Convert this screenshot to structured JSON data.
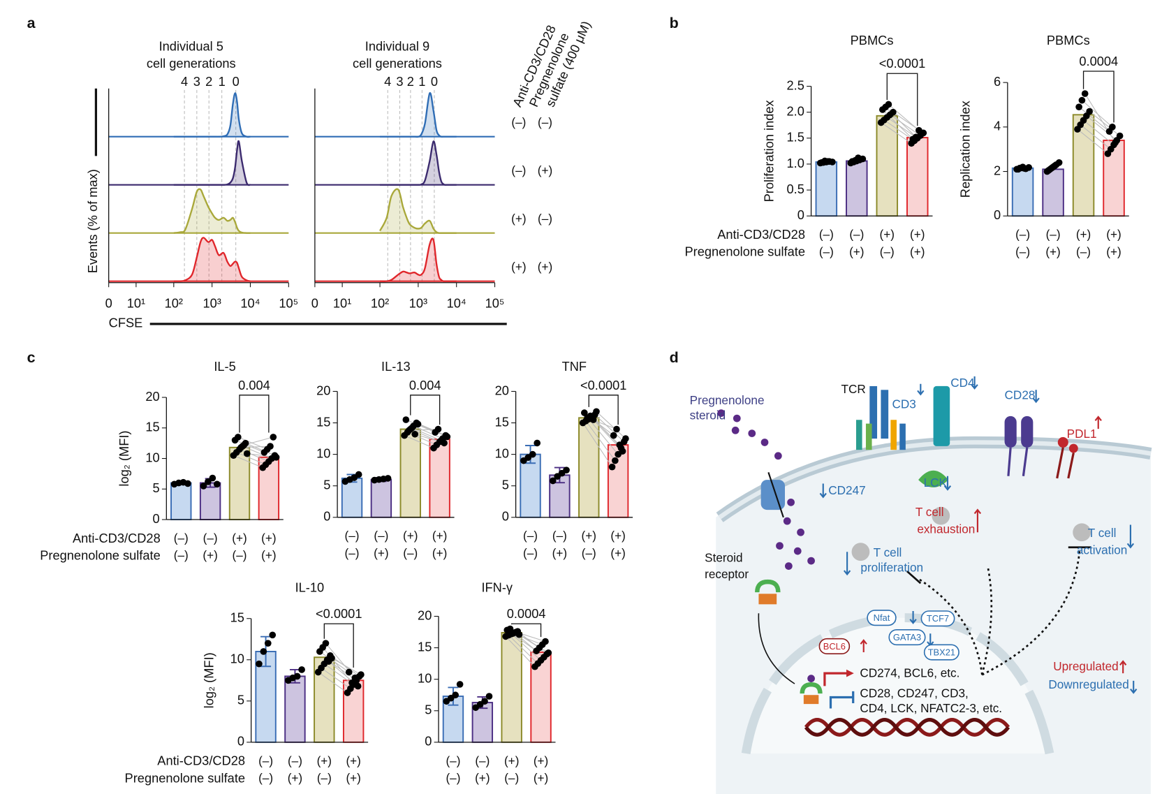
{
  "panel_labels": [
    "a",
    "b",
    "c",
    "d"
  ],
  "chart_data": [
    {
      "type": "line",
      "title": "Individual 5",
      "subtitle": "cell generations",
      "ylabel": "Events (% of max)",
      "xlabel": "CFSE",
      "xscale": "biexponential",
      "xlim": [
        0,
        100000
      ],
      "xticks": [
        0,
        {
          "value": 10,
          "label": "10¹"
        },
        {
          "value": 100,
          "label": "10²"
        },
        {
          "value": 1000,
          "label": "10³"
        },
        {
          "value": 10000,
          "label": "10⁴"
        },
        {
          "value": 100000,
          "label": "10⁵"
        }
      ],
      "ylim": [
        0,
        100
      ],
      "generations": [
        4,
        3,
        2,
        1,
        0
      ],
      "generation_x": [
        190,
        400,
        830,
        1800,
        4170
      ],
      "x": [
        100,
        150,
        200,
        300,
        400,
        500,
        600,
        800,
        1000,
        1200,
        1500,
        2000,
        2500,
        3000,
        3500,
        4000,
        4500,
        5000,
        6000,
        8000,
        10000
      ],
      "series": [
        {
          "color": "#2f6db5",
          "values": [
            0,
            0,
            0,
            0,
            0,
            0,
            0,
            0,
            0,
            0,
            0,
            1,
            5,
            25,
            75,
            100,
            80,
            40,
            8,
            0,
            0
          ]
        },
        {
          "color": "#3b2a6e",
          "values": [
            0,
            0,
            0,
            0,
            0,
            0,
            0,
            0,
            0,
            0,
            0,
            0,
            1,
            5,
            15,
            40,
            80,
            100,
            55,
            5,
            0
          ]
        },
        {
          "color": "#a9a83a",
          "values": [
            0,
            2,
            8,
            55,
            95,
            100,
            85,
            60,
            45,
            35,
            30,
            35,
            28,
            30,
            35,
            25,
            12,
            5,
            1,
            0,
            0
          ]
        },
        {
          "color": "#e0262b",
          "values": [
            0,
            0,
            2,
            15,
            55,
            90,
            100,
            90,
            95,
            80,
            60,
            65,
            45,
            35,
            40,
            45,
            42,
            30,
            10,
            2,
            0
          ]
        }
      ]
    },
    {
      "type": "line",
      "title": "Individual 9",
      "subtitle": "cell generations",
      "xscale": "biexponential",
      "xlim": [
        0,
        100000
      ],
      "xticks": [
        0,
        {
          "value": 10,
          "label": "10¹"
        },
        {
          "value": 100,
          "label": "10²"
        },
        {
          "value": 1000,
          "label": "10³"
        },
        {
          "value": 10000,
          "label": "10⁴"
        },
        {
          "value": 100000,
          "label": "10⁵"
        }
      ],
      "ylim": [
        0,
        100
      ],
      "generations": [
        4,
        3,
        2,
        1,
        0
      ],
      "generation_x": [
        160,
        330,
        630,
        1260,
        2630
      ],
      "x": [
        100,
        150,
        200,
        300,
        400,
        500,
        600,
        800,
        1000,
        1200,
        1500,
        2000,
        2500,
        3000,
        3500,
        4000,
        4500,
        5000,
        6000,
        8000,
        10000
      ],
      "series": [
        {
          "color": "#2f6db5",
          "values": [
            0,
            0,
            0,
            0,
            0,
            0,
            0,
            0,
            0,
            5,
            30,
            100,
            60,
            15,
            3,
            0,
            0,
            0,
            0,
            0,
            0
          ]
        },
        {
          "color": "#3b2a6e",
          "values": [
            0,
            0,
            0,
            0,
            0,
            0,
            0,
            0,
            0,
            1,
            10,
            55,
            100,
            70,
            30,
            8,
            2,
            0,
            0,
            0,
            0
          ]
        },
        {
          "color": "#a9a83a",
          "values": [
            5,
            35,
            85,
            100,
            60,
            35,
            20,
            12,
            10,
            12,
            22,
            28,
            10,
            2,
            0,
            0,
            0,
            0,
            0,
            0,
            0
          ]
        },
        {
          "color": "#e0262b",
          "values": [
            0,
            0,
            3,
            15,
            22,
            20,
            18,
            20,
            15,
            15,
            30,
            85,
            95,
            40,
            10,
            3,
            0,
            0,
            0,
            0,
            0
          ]
        }
      ],
      "conditions": {
        "names": [
          "Anti-CD3/CD28",
          "Pregnenolone",
          "sulfate (400 μM)"
        ],
        "rows": [
          [
            "(–)",
            "(–)"
          ],
          [
            "(–)",
            "(+)"
          ],
          [
            "(+)",
            "(–)"
          ],
          [
            "(+)",
            "(+)"
          ]
        ]
      }
    },
    {
      "type": "bar",
      "title": "PBMCs",
      "ylabel": "Proliferation index",
      "ylim": [
        0,
        2.5
      ],
      "yticks": [
        0,
        0.5,
        {
          "value": 1,
          "label": "1.0"
        },
        1.5,
        {
          "value": 2,
          "label": "2.0"
        },
        2.5
      ],
      "values": [
        1.04,
        1.06,
        1.93,
        1.51
      ],
      "points": [
        [
          1.02,
          1.03,
          1.04,
          1.05,
          1.04,
          1.03,
          1.06,
          1.05
        ],
        [
          1.02,
          1.04,
          1.06,
          1.08,
          1.1,
          1.05,
          1.07,
          1.12
        ],
        [
          1.8,
          1.85,
          1.9,
          1.95,
          2.0,
          2.05,
          2.1,
          2.15
        ],
        [
          1.4,
          1.45,
          1.5,
          1.55,
          1.6,
          1.48,
          1.52,
          1.65
        ]
      ],
      "p_value": "<0.0001",
      "colors": [
        "#c6d9f0",
        "#cdc4e0",
        "#e6e1bf",
        "#f9d3d3"
      ],
      "edge_colors": [
        "#3a6db5",
        "#4b2e83",
        "#8c8a2a",
        "#e0262b"
      ],
      "conditions": {
        "names": [
          "Anti-CD3/CD28",
          "Pregnenolone sulfate"
        ],
        "rows": [
          [
            "(–)",
            "(–)",
            "(+)",
            "(+)"
          ],
          [
            "(–)",
            "(+)",
            "(–)",
            "(+)"
          ]
        ]
      }
    },
    {
      "type": "bar",
      "title": "PBMCs",
      "ylabel": "Replication index",
      "ylim": [
        0,
        6
      ],
      "yticks": [
        0,
        2,
        4,
        6
      ],
      "values": [
        2.15,
        2.1,
        4.55,
        3.4
      ],
      "points": [
        [
          2.1,
          2.15,
          2.2,
          2.12,
          2.18,
          2.1,
          2.16,
          2.14
        ],
        [
          2.0,
          2.1,
          2.2,
          2.3,
          2.4,
          2.05,
          2.15,
          2.25
        ],
        [
          3.9,
          4.1,
          4.3,
          4.5,
          4.7,
          4.9,
          5.2,
          5.5
        ],
        [
          2.8,
          3.0,
          3.2,
          3.4,
          3.6,
          3.8,
          4.0,
          3.3
        ]
      ],
      "p_value": 0.0004,
      "colors": [
        "#c6d9f0",
        "#cdc4e0",
        "#e6e1bf",
        "#f9d3d3"
      ],
      "edge_colors": [
        "#3a6db5",
        "#4b2e83",
        "#8c8a2a",
        "#e0262b"
      ],
      "conditions": {
        "rows": [
          [
            "(–)",
            "(–)",
            "(+)",
            "(+)"
          ],
          [
            "(–)",
            "(+)",
            "(–)",
            "(+)"
          ]
        ]
      }
    },
    {
      "type": "bar",
      "title": "IL-5",
      "ylabel": "log₂ (MFI)",
      "ylim": [
        0,
        20
      ],
      "yticks": [
        0,
        5,
        10,
        15,
        20
      ],
      "values": [
        6,
        6,
        11.8,
        10.2
      ],
      "errors": [
        0.2,
        0.7,
        null,
        null
      ],
      "points": [
        [
          5.8,
          6,
          6.1,
          5.9
        ],
        [
          5.5,
          6.2,
          6.8,
          5.8
        ],
        [
          10.5,
          11,
          11.5,
          12,
          12.5,
          13,
          13.5,
          11.8,
          12.2,
          10.8
        ],
        [
          8.5,
          9,
          9.5,
          10,
          10.5,
          11,
          11.5,
          12,
          13.5,
          10.2
        ]
      ],
      "p_value": 0.004,
      "colors": [
        "#c6d9f0",
        "#cdc4e0",
        "#e6e1bf",
        "#f9d3d3"
      ],
      "edge_colors": [
        "#3a6db5",
        "#4b2e83",
        "#8c8a2a",
        "#e0262b"
      ],
      "conditions": {
        "names": [
          "Anti-CD3/CD28",
          "Pregnenolone sulfate"
        ],
        "rows": [
          [
            "(–)",
            "(–)",
            "(+)",
            "(+)"
          ],
          [
            "(–)",
            "(+)",
            "(–)",
            "(+)"
          ]
        ]
      }
    },
    {
      "type": "bar",
      "title": "IL-13",
      "ylim": [
        0,
        20
      ],
      "yticks": [
        0,
        5,
        10,
        15,
        20
      ],
      "values": [
        6.2,
        6,
        14,
        12.4
      ],
      "errors": [
        0.6,
        0.3,
        null,
        null
      ],
      "points": [
        [
          5.7,
          6,
          6.3,
          6.8
        ],
        [
          5.9,
          6,
          6.1,
          6.2
        ],
        [
          13,
          13.5,
          14,
          14.5,
          15,
          15.5,
          13.8,
          14.2,
          13.2,
          14.8
        ],
        [
          11,
          11.5,
          12,
          12.5,
          13,
          13.5,
          14,
          12.2,
          11.8,
          12.8
        ]
      ],
      "p_value": 0.004,
      "colors": [
        "#c6d9f0",
        "#cdc4e0",
        "#e6e1bf",
        "#f9d3d3"
      ],
      "edge_colors": [
        "#3a6db5",
        "#4b2e83",
        "#8c8a2a",
        "#e0262b"
      ],
      "conditions": {
        "rows": [
          [
            "(–)",
            "(–)",
            "(+)",
            "(+)"
          ],
          [
            "(–)",
            "(+)",
            "(–)",
            "(+)"
          ]
        ]
      }
    },
    {
      "type": "bar",
      "title": "TNF",
      "ylim": [
        0,
        20
      ],
      "yticks": [
        0,
        5,
        10,
        15,
        20
      ],
      "values": [
        10,
        6.7,
        15.8,
        11.5
      ],
      "errors": [
        1.4,
        1.2,
        null,
        null
      ],
      "points": [
        [
          9,
          9.5,
          10,
          11.8
        ],
        [
          5.8,
          6.5,
          7,
          7.5
        ],
        [
          15,
          15.3,
          15.6,
          16,
          16.3,
          16.6,
          15.8,
          16.1,
          15.5,
          16.8
        ],
        [
          8,
          9,
          10,
          11,
          12,
          13,
          14,
          11.5,
          10.5,
          12.5
        ]
      ],
      "p_value": "<0.0001",
      "colors": [
        "#c6d9f0",
        "#cdc4e0",
        "#e6e1bf",
        "#f9d3d3"
      ],
      "edge_colors": [
        "#3a6db5",
        "#4b2e83",
        "#8c8a2a",
        "#e0262b"
      ],
      "conditions": {
        "rows": [
          [
            "(–)",
            "(–)",
            "(+)",
            "(+)"
          ],
          [
            "(–)",
            "(+)",
            "(–)",
            "(+)"
          ]
        ]
      }
    },
    {
      "type": "bar",
      "title": "IL-10",
      "ylabel": "log₂ (MFI)",
      "ylim": [
        0,
        15
      ],
      "yticks": [
        0,
        5,
        10,
        15
      ],
      "values": [
        11,
        8,
        10.3,
        7.5
      ],
      "errors": [
        1.8,
        0.8,
        null,
        null
      ],
      "points": [
        [
          9.5,
          11,
          12,
          13
        ],
        [
          7.5,
          7.8,
          8,
          8.8
        ],
        [
          8.5,
          9,
          9.5,
          10,
          10.5,
          11,
          11.5,
          12,
          9.8,
          10.2
        ],
        [
          6,
          6.5,
          7,
          7.5,
          8,
          8.5,
          7.2,
          7.8,
          6.8,
          8.2
        ]
      ],
      "p_value": "<0.0001",
      "colors": [
        "#c6d9f0",
        "#cdc4e0",
        "#e6e1bf",
        "#f9d3d3"
      ],
      "edge_colors": [
        "#3a6db5",
        "#4b2e83",
        "#8c8a2a",
        "#e0262b"
      ],
      "conditions": {
        "names": [
          "Anti-CD3/CD28",
          "Pregnenolone sulfate"
        ],
        "rows": [
          [
            "(–)",
            "(–)",
            "(+)",
            "(+)"
          ],
          [
            "(–)",
            "(+)",
            "(–)",
            "(+)"
          ]
        ]
      }
    },
    {
      "type": "bar",
      "title": "IFN-γ",
      "ylim": [
        0,
        20
      ],
      "yticks": [
        0,
        5,
        10,
        15,
        20
      ],
      "values": [
        7.3,
        6.3,
        17.4,
        14.3
      ],
      "errors": [
        1.4,
        0.9,
        null,
        null
      ],
      "points": [
        [
          6.5,
          7,
          7.5,
          9.2
        ],
        [
          5.5,
          6,
          6.5,
          7.3
        ],
        [
          16.8,
          17,
          17.2,
          17.4,
          17.6,
          17.8,
          18,
          17.3,
          17.5,
          17.1
        ],
        [
          12,
          12.5,
          13,
          13.5,
          14,
          14.5,
          15,
          15.5,
          16,
          14.2
        ]
      ],
      "p_value": 0.0004,
      "colors": [
        "#c6d9f0",
        "#cdc4e0",
        "#e6e1bf",
        "#f9d3d3"
      ],
      "edge_colors": [
        "#3a6db5",
        "#4b2e83",
        "#8c8a2a",
        "#e0262b"
      ],
      "conditions": {
        "rows": [
          [
            "(–)",
            "(–)",
            "(+)",
            "(+)"
          ],
          [
            "(–)",
            "(+)",
            "(–)",
            "(+)"
          ]
        ]
      }
    }
  ],
  "diagram": {
    "labels": [
      "Pregnenolone",
      "steroid",
      "TCR",
      "CD3",
      "CD4",
      "CD28",
      "PDL1",
      "CD247",
      "LCK",
      "T cell",
      "exhaustion",
      "T cell",
      "activation",
      "T cell",
      "proliferation",
      "Steroid",
      "receptor",
      "Nfat",
      "TCF7",
      "GATA3",
      "TBX21",
      "BCL6",
      "CD274, BCL6, etc.",
      "CD28, CD247, CD3,",
      "CD4, LCK, NFATC2-3, etc.",
      "Upregulated",
      "Downregulated"
    ]
  }
}
